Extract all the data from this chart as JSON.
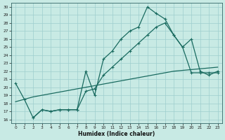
{
  "xlabel": "Humidex (Indice chaleur)",
  "bg_color": "#c8eae4",
  "grid_color": "#9ecece",
  "line_color": "#1a6b60",
  "xlim": [
    -0.5,
    23.5
  ],
  "ylim": [
    15.5,
    30.5
  ],
  "xticks": [
    0,
    1,
    2,
    3,
    4,
    5,
    6,
    7,
    8,
    9,
    10,
    11,
    12,
    13,
    14,
    15,
    16,
    17,
    18,
    19,
    20,
    21,
    22,
    23
  ],
  "yticks": [
    16,
    17,
    18,
    19,
    20,
    21,
    22,
    23,
    24,
    25,
    26,
    27,
    28,
    29,
    30
  ],
  "line1_x": [
    0,
    1,
    2,
    3,
    4,
    5,
    6,
    7,
    8,
    9,
    10,
    11,
    12,
    13,
    14,
    15,
    16,
    17,
    18,
    19,
    20,
    21,
    22,
    23
  ],
  "line1_y": [
    20.5,
    18.5,
    16.2,
    17.2,
    17.0,
    17.2,
    17.2,
    17.2,
    22.0,
    19.0,
    23.5,
    24.5,
    26.0,
    27.0,
    27.5,
    30.0,
    29.2,
    28.5,
    26.5,
    25.0,
    21.8,
    21.8,
    21.8,
    21.8
  ],
  "line2_x": [
    2,
    3,
    4,
    5,
    6,
    7,
    8,
    9,
    10,
    11,
    12,
    13,
    14,
    15,
    16,
    17,
    18,
    19,
    20,
    21,
    22,
    23
  ],
  "line2_y": [
    16.2,
    17.2,
    17.0,
    17.2,
    17.2,
    17.2,
    19.5,
    19.8,
    21.5,
    22.5,
    23.5,
    24.5,
    25.5,
    26.5,
    27.5,
    28.0,
    26.5,
    25.0,
    26.0,
    22.0,
    21.5,
    22.0
  ],
  "line3_x": [
    0,
    1,
    2,
    3,
    4,
    5,
    6,
    7,
    8,
    9,
    10,
    11,
    12,
    13,
    14,
    15,
    16,
    17,
    18,
    19,
    20,
    21,
    22,
    23
  ],
  "line3_y": [
    18.2,
    18.5,
    18.8,
    19.0,
    19.2,
    19.4,
    19.6,
    19.8,
    20.0,
    20.2,
    20.4,
    20.6,
    20.8,
    21.0,
    21.2,
    21.4,
    21.6,
    21.8,
    22.0,
    22.1,
    22.2,
    22.3,
    22.4,
    22.5
  ]
}
